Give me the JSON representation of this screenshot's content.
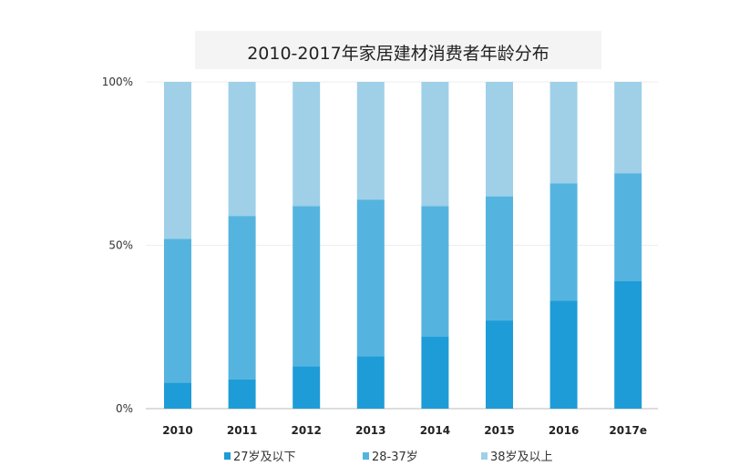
{
  "chart_data": {
    "type": "bar",
    "stacked": true,
    "title": "2010-2017年家居建材消费者年龄分布",
    "categories": [
      "2010",
      "2011",
      "2012",
      "2013",
      "2014",
      "2015",
      "2016",
      "2017e"
    ],
    "series": [
      {
        "name": "27岁及以下",
        "color": "#1e9cd7",
        "values": [
          8,
          9,
          13,
          16,
          22,
          27,
          33,
          39
        ]
      },
      {
        "name": "28-37岁",
        "color": "#55b4df",
        "values": [
          44,
          50,
          49,
          48,
          40,
          38,
          36,
          33
        ]
      },
      {
        "name": "38岁及以上",
        "color": "#9fd0e8",
        "values": [
          48,
          41,
          38,
          36,
          38,
          35,
          31,
          28
        ]
      }
    ],
    "yticks": [
      "0%",
      "50%",
      "100%"
    ],
    "ylim": [
      0,
      100
    ],
    "legend": "bottom",
    "grid": true
  }
}
